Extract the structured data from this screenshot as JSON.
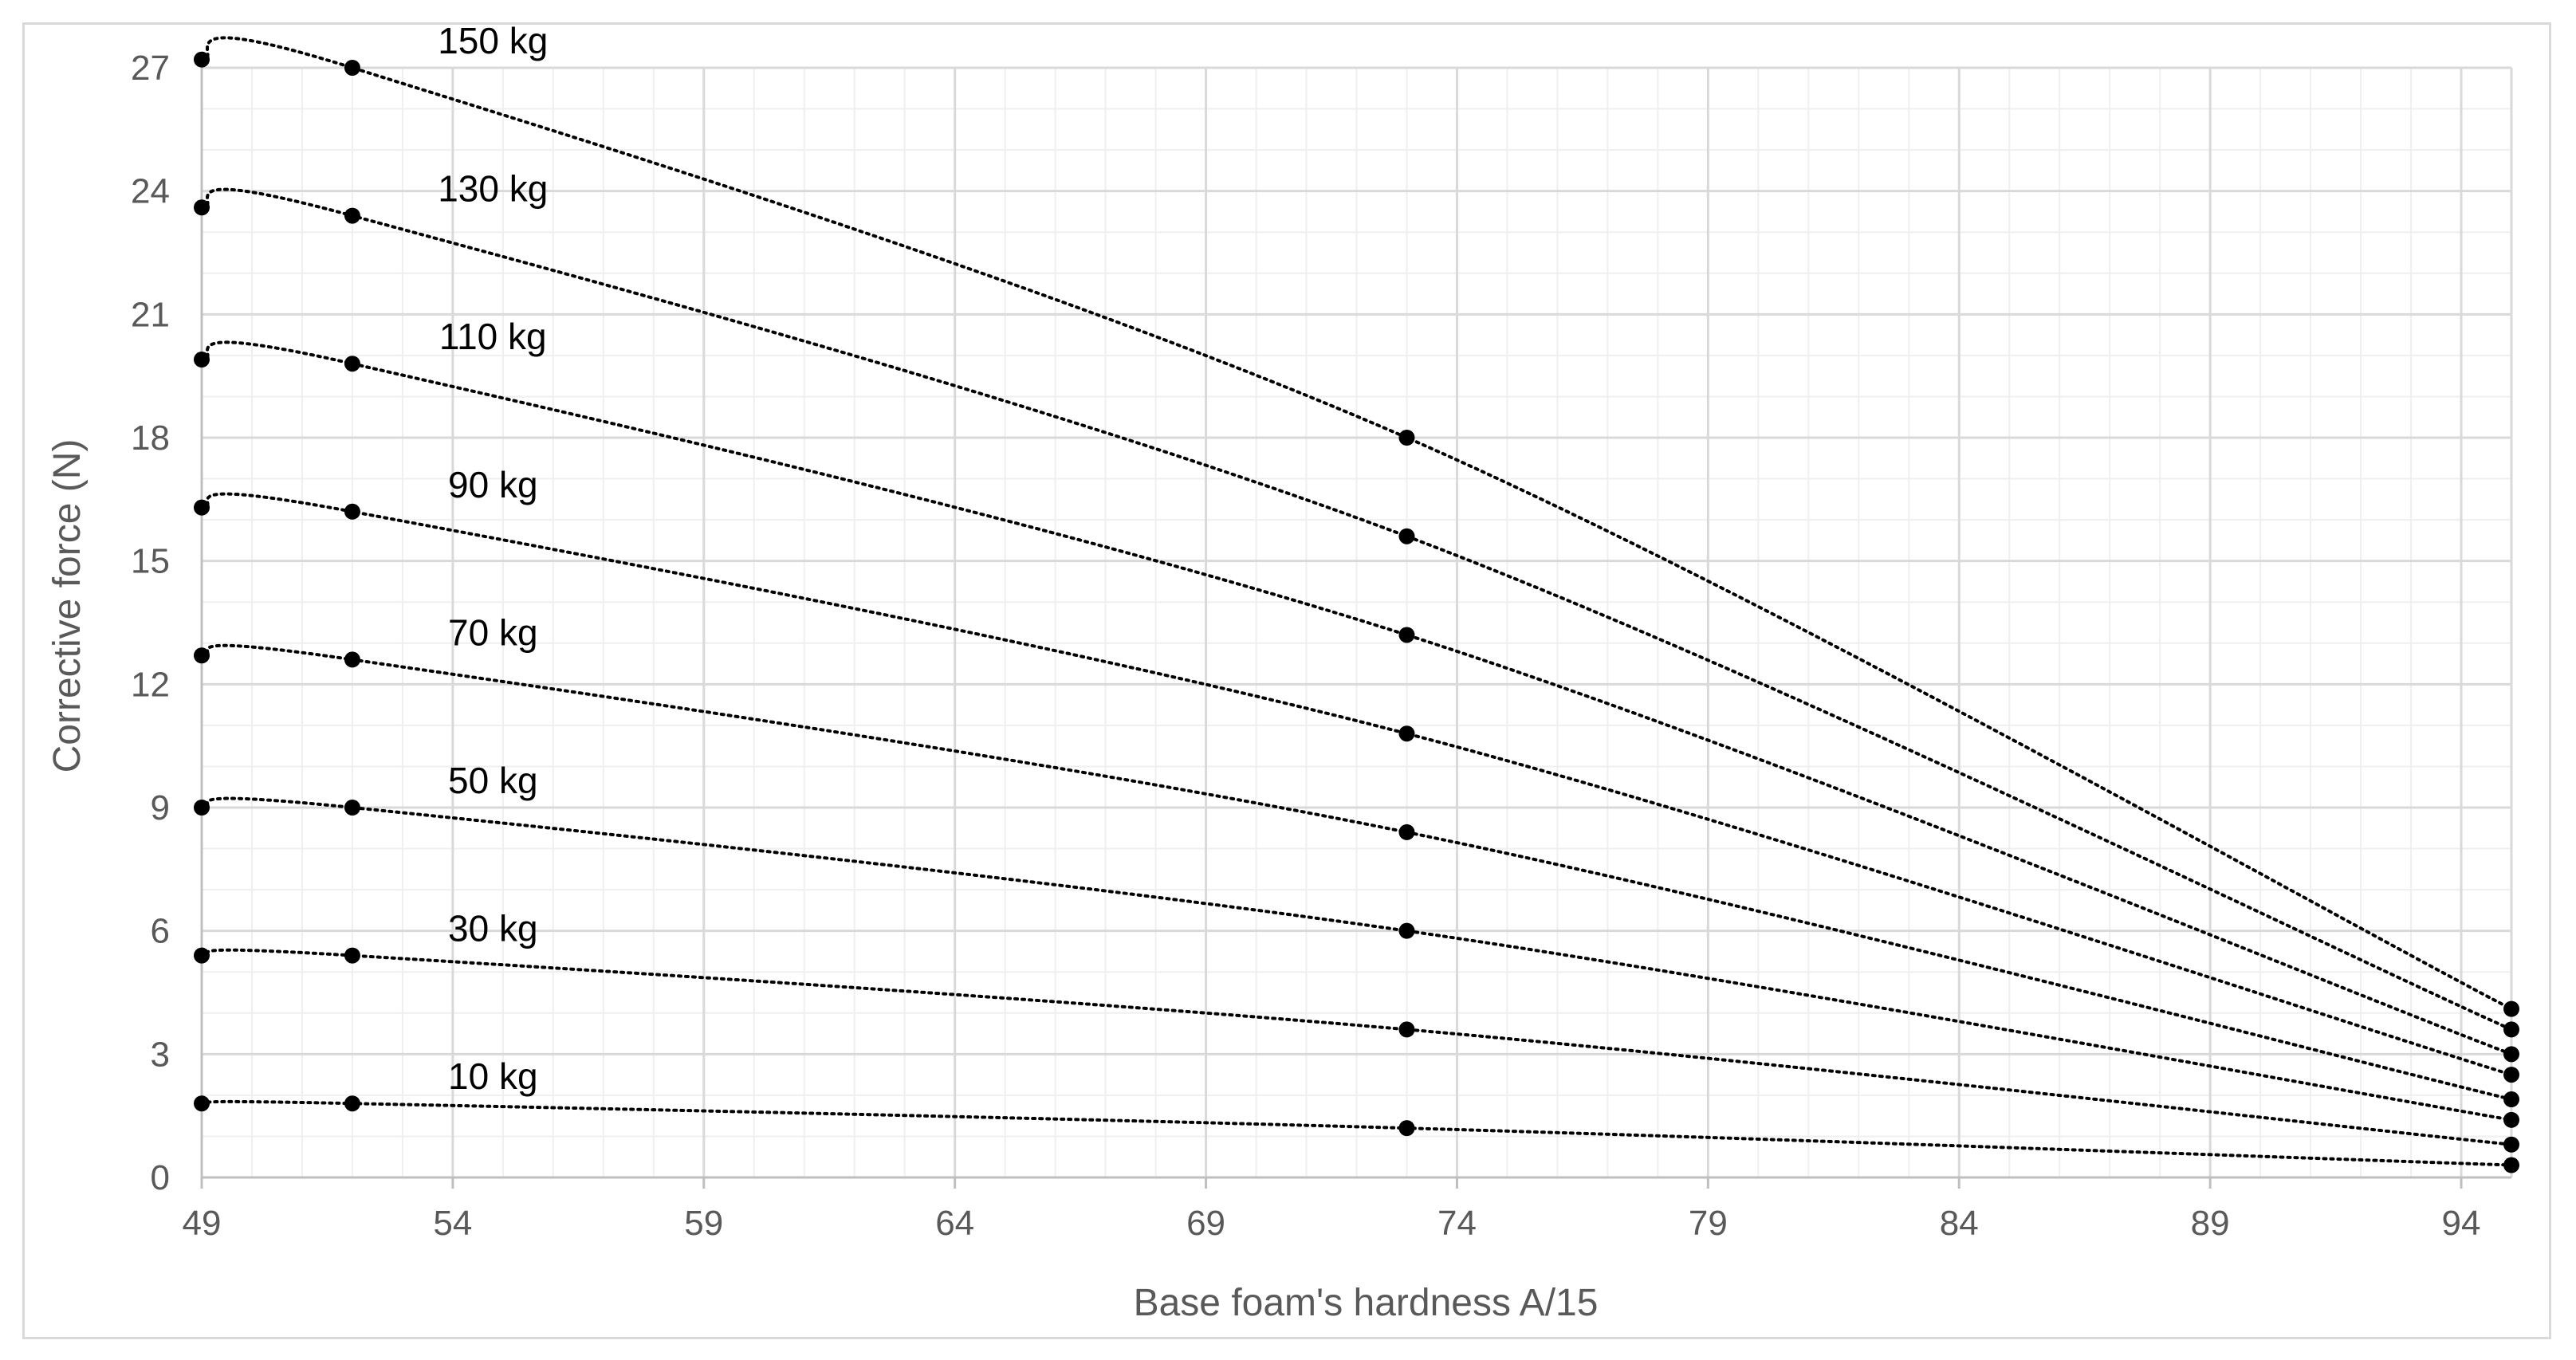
{
  "chart_data": {
    "type": "line",
    "title": "",
    "xlabel": "Base foam's hardness A/15",
    "ylabel": "Corrective force (N)",
    "xlim": [
      49,
      95
    ],
    "ylim": [
      0,
      27
    ],
    "x_ticks": [
      49,
      54,
      59,
      64,
      69,
      74,
      79,
      84,
      89,
      94
    ],
    "y_ticks": [
      0,
      3,
      6,
      9,
      12,
      15,
      18,
      21,
      24,
      27
    ],
    "x_minor_step": 1,
    "y_minor_step": 1,
    "grid": true,
    "legend": "none",
    "line_style": "dotted",
    "marker": "circle",
    "series_color": "#000000",
    "x": [
      49,
      52,
      73,
      95
    ],
    "series": [
      {
        "name": "10 kg",
        "values": [
          1.8,
          1.8,
          1.2,
          0.3
        ]
      },
      {
        "name": "30 kg",
        "values": [
          5.4,
          5.4,
          3.6,
          0.8
        ]
      },
      {
        "name": "50 kg",
        "values": [
          9.0,
          9.0,
          6.0,
          1.4
        ]
      },
      {
        "name": "70 kg",
        "values": [
          12.7,
          12.6,
          8.4,
          1.9
        ]
      },
      {
        "name": "90 kg",
        "values": [
          16.3,
          16.2,
          10.8,
          2.5
        ]
      },
      {
        "name": "110 kg",
        "values": [
          19.9,
          19.8,
          13.2,
          3.0
        ]
      },
      {
        "name": "130 kg",
        "values": [
          23.6,
          23.4,
          15.6,
          3.6
        ]
      },
      {
        "name": "150 kg",
        "values": [
          27.2,
          27.0,
          18.0,
          4.1
        ]
      }
    ]
  }
}
